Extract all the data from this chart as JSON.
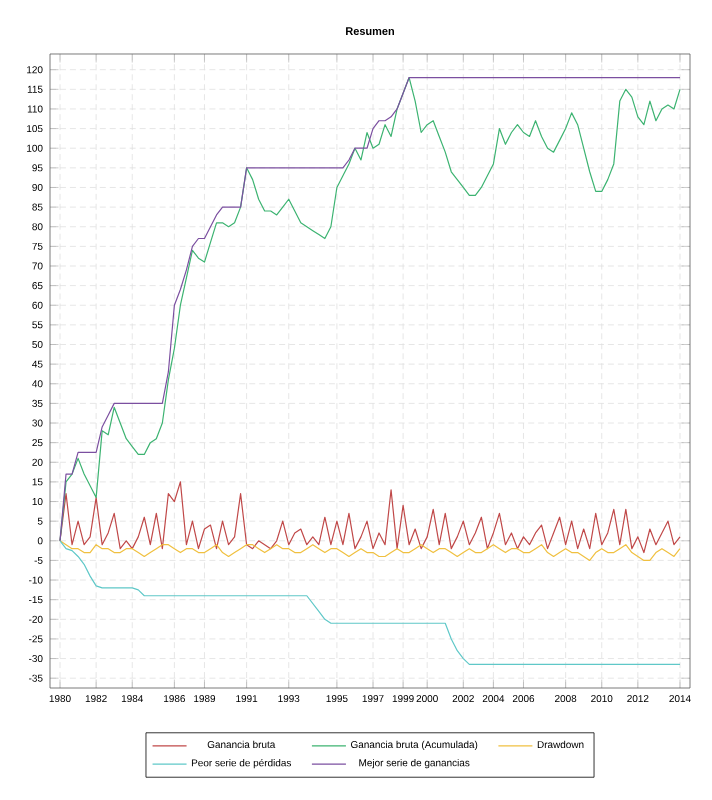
{
  "chart_data": {
    "type": "line",
    "title": "Resumen",
    "categories": [
      "1980",
      null,
      null,
      null,
      null,
      null,
      "1982",
      null,
      null,
      null,
      null,
      null,
      "1984",
      null,
      null,
      null,
      null,
      null,
      null,
      "1986",
      null,
      null,
      null,
      null,
      "1989",
      null,
      null,
      null,
      null,
      null,
      null,
      "1991",
      null,
      null,
      null,
      null,
      null,
      null,
      "1993",
      null,
      null,
      null,
      null,
      null,
      null,
      null,
      "1995",
      null,
      null,
      null,
      null,
      null,
      "1997",
      null,
      null,
      null,
      null,
      "1999",
      null,
      null,
      null,
      "2000",
      null,
      null,
      null,
      null,
      null,
      "2002",
      null,
      null,
      null,
      null,
      "2004",
      null,
      null,
      null,
      null,
      "2006",
      null,
      null,
      null,
      null,
      null,
      null,
      "2008",
      null,
      null,
      null,
      null,
      null,
      "2010",
      null,
      null,
      null,
      null,
      null,
      "2012",
      null,
      null,
      null,
      null,
      null,
      null,
      "2014"
    ],
    "ylim": [
      -37.5,
      124
    ],
    "yticks": [
      -35,
      -30,
      -25,
      -20,
      -15,
      -10,
      -5,
      0,
      5,
      10,
      15,
      20,
      25,
      30,
      35,
      40,
      45,
      50,
      55,
      60,
      65,
      70,
      75,
      80,
      85,
      90,
      95,
      100,
      105,
      110,
      115,
      120
    ],
    "grid": true,
    "legend": "bottom",
    "marker": "none",
    "line_style": "solid",
    "series": [
      {
        "name": "Ganancia bruta",
        "color": "#c04848",
        "values": [
          0,
          12,
          -1,
          5,
          -1,
          1,
          11,
          -1,
          2,
          7,
          -2,
          0,
          -2,
          1,
          6,
          -1,
          7,
          -2,
          12,
          10,
          15,
          -1,
          5,
          -2,
          3,
          4,
          -2,
          5,
          -1,
          1,
          12,
          -1,
          -2,
          0,
          -1,
          -2,
          0,
          5,
          -1,
          2,
          3,
          -1,
          1,
          -1,
          6,
          -1,
          5,
          -1,
          7,
          -2,
          1,
          5,
          -2,
          2,
          -1,
          13,
          -2,
          9,
          -1,
          3,
          -2,
          1,
          8,
          -1,
          7,
          -2,
          1,
          5,
          -1,
          2,
          6,
          -2,
          2,
          7,
          -1,
          2,
          -2,
          1,
          -1,
          2,
          4,
          -2,
          2,
          6,
          -1,
          5,
          -2,
          3,
          -2,
          7,
          -1,
          2,
          8,
          -1,
          8,
          -2,
          1,
          -3,
          3,
          -1,
          2,
          5,
          -1,
          1
        ]
      },
      {
        "name": "Ganancia bruta (Acumulada)",
        "color": "#3cb371",
        "values": [
          0,
          15,
          17,
          21,
          17,
          14,
          11,
          28,
          27,
          34,
          30,
          26,
          24,
          22,
          22,
          25,
          26,
          30,
          41,
          49,
          60,
          67,
          74,
          72,
          71,
          76,
          81,
          81,
          80,
          81,
          85,
          95,
          92,
          87,
          84,
          84,
          83,
          85,
          87,
          84,
          81,
          80,
          79,
          78,
          77,
          80,
          90,
          93,
          96,
          100,
          97,
          104,
          100,
          101,
          106,
          103,
          110,
          114,
          118,
          112,
          104,
          106,
          107,
          103,
          99,
          94,
          92,
          90,
          88,
          88,
          90,
          93,
          96,
          105,
          101,
          104,
          106,
          104,
          103,
          107,
          103,
          100,
          99,
          102,
          105,
          109,
          106,
          100,
          94,
          89,
          89,
          92,
          96,
          112,
          115,
          113,
          108,
          106,
          112,
          107,
          110,
          111,
          110,
          115
        ]
      },
      {
        "name": "Drawdown",
        "color": "#f0c040",
        "values": [
          0,
          -1,
          -2,
          -2,
          -3,
          -3,
          -1,
          -2,
          -2,
          -3,
          -3,
          -2,
          -2,
          -3,
          -4,
          -3,
          -2,
          -1,
          -1,
          -2,
          -3,
          -2,
          -2,
          -3,
          -3,
          -2,
          -1,
          -3,
          -4,
          -3,
          -2,
          -1,
          -1,
          -2,
          -3,
          -2,
          -1,
          -2,
          -2,
          -3,
          -3,
          -2,
          -1,
          -2,
          -3,
          -2,
          -2,
          -3,
          -4,
          -3,
          -2,
          -3,
          -3,
          -4,
          -4,
          -3,
          -2,
          -3,
          -3,
          -2,
          -1,
          -2,
          -3,
          -2,
          -2,
          -3,
          -4,
          -3,
          -2,
          -3,
          -3,
          -2,
          -1,
          -2,
          -3,
          -2,
          -2,
          -3,
          -3,
          -2,
          -1,
          -3,
          -4,
          -3,
          -2,
          -3,
          -3,
          -4,
          -5,
          -3,
          -2,
          -3,
          -3,
          -2,
          -1,
          -3,
          -4,
          -5,
          -5,
          -3,
          -2,
          -3,
          -4,
          -2
        ]
      },
      {
        "name": "Peor serie de pérdidas",
        "color": "#5fc8c8",
        "values": [
          0,
          -2,
          -2.5,
          -4,
          -6,
          -9,
          -11.5,
          -12,
          -12,
          -12,
          -12,
          -12,
          -12,
          -12.5,
          -14,
          -14,
          -14,
          -14,
          -14,
          -14,
          -14,
          -14,
          -14,
          -14,
          -14,
          -14,
          -14,
          -14,
          -14,
          -14,
          -14,
          -14,
          -14,
          -14,
          -14,
          -14,
          -14,
          -14,
          -14,
          -14,
          -14,
          -14,
          -16,
          -18,
          -20,
          -21,
          -21,
          -21,
          -21,
          -21,
          -21,
          -21,
          -21,
          -21,
          -21,
          -21,
          -21,
          -21,
          -21,
          -21,
          -21,
          -21,
          -21,
          -21,
          -21,
          -25,
          -28,
          -30,
          -31.5,
          -31.5,
          -31.5,
          -31.5,
          -31.5,
          -31.5,
          -31.5,
          -31.5,
          -31.5,
          -31.5,
          -31.5,
          -31.5,
          -31.5,
          -31.5,
          -31.5,
          -31.5,
          -31.5,
          -31.5,
          -31.5,
          -31.5,
          -31.5,
          -31.5,
          -31.5,
          -31.5,
          -31.5,
          -31.5,
          -31.5,
          -31.5,
          -31.5,
          -31.5,
          -31.5,
          -31.5,
          -31.5,
          -31.5,
          -31.5,
          -31.5
        ]
      },
      {
        "name": "Mejor serie de ganancias",
        "color": "#7b4fa0",
        "values": [
          0,
          17,
          17,
          22.5,
          22.5,
          22.5,
          22.5,
          29,
          32,
          35,
          35,
          35,
          35,
          35,
          35,
          35,
          35,
          35,
          43,
          60,
          64,
          69,
          75,
          77,
          77,
          80,
          83,
          85,
          85,
          85,
          85,
          95,
          95,
          95,
          95,
          95,
          95,
          95,
          95,
          95,
          95,
          95,
          95,
          95,
          95,
          95,
          95,
          95,
          97,
          100,
          100,
          100,
          105,
          107,
          107,
          108,
          110,
          114,
          118,
          118,
          118,
          118,
          118,
          118,
          118,
          118,
          118,
          118,
          118,
          118,
          118,
          118,
          118,
          118,
          118,
          118,
          118,
          118,
          118,
          118,
          118,
          118,
          118,
          118,
          118,
          118,
          118,
          118,
          118,
          118,
          118,
          118,
          118,
          118,
          118,
          118,
          118,
          118,
          118,
          118,
          118,
          118,
          118,
          118
        ]
      }
    ]
  }
}
